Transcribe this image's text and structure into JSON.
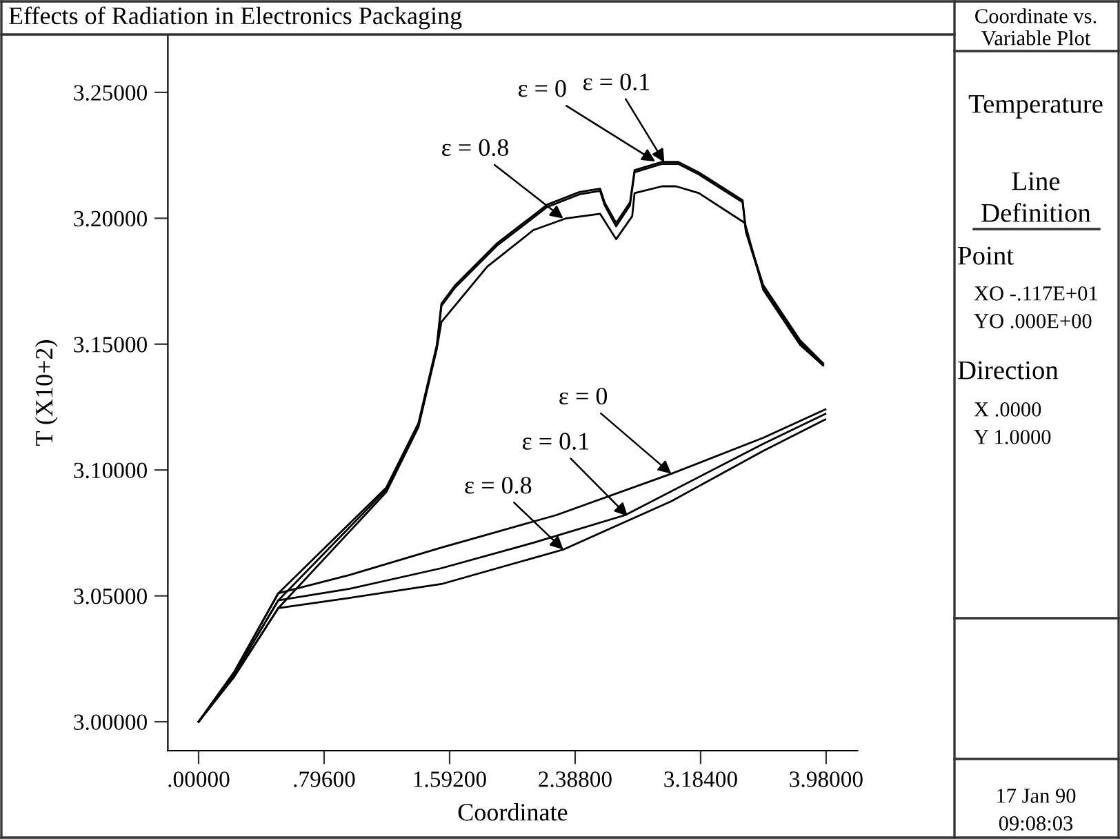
{
  "chart_data": [
    {
      "type": "line",
      "title": "Effects of Radiation in Electronics Packaging",
      "xlabel": "Coordinate",
      "ylabel": "T (X10+2)",
      "xlim": [
        -0.195,
        4.179
      ],
      "ylim": [
        2.9885,
        3.273
      ],
      "xticks": [
        {
          "value": 0,
          "label": ".00000"
        },
        {
          "value": 0.796,
          "label": ".79600"
        },
        {
          "value": 1.592,
          "label": "1.59200"
        },
        {
          "value": 2.388,
          "label": "2.38800"
        },
        {
          "value": 3.184,
          "label": "3.18400"
        },
        {
          "value": 3.98,
          "label": "3.98000"
        }
      ],
      "yticks": [
        {
          "value": 3.0,
          "label": "3.00000"
        },
        {
          "value": 3.05,
          "label": "3.05000"
        },
        {
          "value": 3.1,
          "label": "3.10000"
        },
        {
          "value": 3.15,
          "label": "3.15000"
        },
        {
          "value": 3.2,
          "label": "3.20000"
        },
        {
          "value": 3.25,
          "label": "3.25000"
        }
      ],
      "line_style": "solid",
      "marker": "none",
      "series": [
        {
          "color": "#000000",
          "x": [
            0,
            0.227,
            0.505,
            1.19,
            1.394,
            1.511,
            1.54,
            1.627,
            1.89,
            2.211,
            2.415,
            2.546,
            2.575,
            2.648,
            2.736,
            2.765,
            2.94,
            3.042,
            3.173,
            3.45,
            3.471,
            3.581,
            3.815,
            3.961
          ],
          "values": [
            3.0,
            3.0199,
            3.051,
            3.093,
            3.1186,
            3.1497,
            3.1661,
            3.1734,
            3.1899,
            3.2054,
            3.2104,
            3.2118,
            3.2063,
            3.1981,
            3.2063,
            3.2191,
            3.2224,
            3.2224,
            3.2182,
            3.2072,
            3.1953,
            3.1734,
            3.1515,
            3.1424
          ]
        },
        {
          "color": "#000000",
          "x": [
            0,
            0.227,
            0.505,
            1.19,
            1.394,
            1.511,
            1.54,
            1.627,
            1.89,
            2.211,
            2.415,
            2.546,
            2.575,
            2.648,
            2.736,
            2.765,
            2.94,
            3.042,
            3.173,
            3.45,
            3.471,
            3.581,
            3.815,
            3.961
          ],
          "values": [
            3.0,
            3.019,
            3.0482,
            3.0922,
            3.1178,
            3.1489,
            3.1652,
            3.1725,
            3.189,
            3.2045,
            3.2095,
            3.2109,
            3.2052,
            3.1968,
            3.2052,
            3.2183,
            3.2216,
            3.2216,
            3.2174,
            3.2064,
            3.1945,
            3.1726,
            3.1507,
            3.1418
          ]
        },
        {
          "color": "#000000",
          "x": [
            0,
            0.227,
            0.505,
            1.19,
            1.394,
            1.511,
            1.54,
            1.831,
            2.123,
            2.327,
            2.546,
            2.648,
            2.75,
            2.765,
            2.94,
            3.027,
            3.173,
            3.465,
            3.581,
            3.815,
            3.961
          ],
          "values": [
            3.0,
            3.018,
            3.0451,
            3.0912,
            3.117,
            3.1482,
            3.1588,
            3.1808,
            3.1953,
            3.1999,
            3.2018,
            3.1917,
            3.2008,
            3.21,
            3.2127,
            3.2127,
            3.21,
            3.1981,
            3.1716,
            3.1497,
            3.1415
          ]
        },
        {
          "color": "#000000",
          "x": [
            0,
            0.227,
            0.505,
            0.957,
            1.54,
            2.269,
            2.998,
            3.581,
            3.975
          ],
          "values": [
            3.0,
            3.0199,
            3.051,
            3.0583,
            3.0692,
            3.0821,
            3.0985,
            3.1128,
            3.1241
          ]
        },
        {
          "color": "#000000",
          "x": [
            0,
            0.227,
            0.505,
            0.957,
            1.54,
            2.123,
            2.706,
            3.581,
            3.975
          ],
          "values": [
            3.0,
            3.019,
            3.0482,
            3.0528,
            3.061,
            3.0711,
            3.0821,
            3.1104,
            3.1223
          ]
        },
        {
          "color": "#000000",
          "x": [
            0,
            0.227,
            0.505,
            0.957,
            1.54,
            2.313,
            2.998,
            3.581,
            3.975
          ],
          "values": [
            3.0,
            3.018,
            3.0451,
            3.0492,
            3.0547,
            3.0684,
            3.0876,
            3.1076,
            3.1201
          ]
        }
      ],
      "annotations": [
        {
          "text": "ε = 0",
          "x": 2.896,
          "y": 3.2226
        },
        {
          "text": "ε = 0.1",
          "x": 2.954,
          "y": 3.2222
        },
        {
          "text": "ε = 0.8",
          "x": 2.313,
          "y": 3.1999
        },
        {
          "text": "ε = 0",
          "x": 2.998,
          "y": 3.0985
        },
        {
          "text": "ε = 0.1",
          "x": 2.721,
          "y": 3.0817
        },
        {
          "text": "ε = 0.8",
          "x": 2.313,
          "y": 3.0684
        }
      ]
    },
    {
      "type": "other",
      "title": "Coordinate vs. Variable Plot",
      "annotations": [
        "Temperature",
        "Line",
        "Definition",
        "Point",
        "XO -.117E+01",
        "YO .000E+00",
        "Direction",
        "X .0000",
        "Y 1.0000",
        "17 Jan 90",
        "09:08:03"
      ]
    }
  ]
}
